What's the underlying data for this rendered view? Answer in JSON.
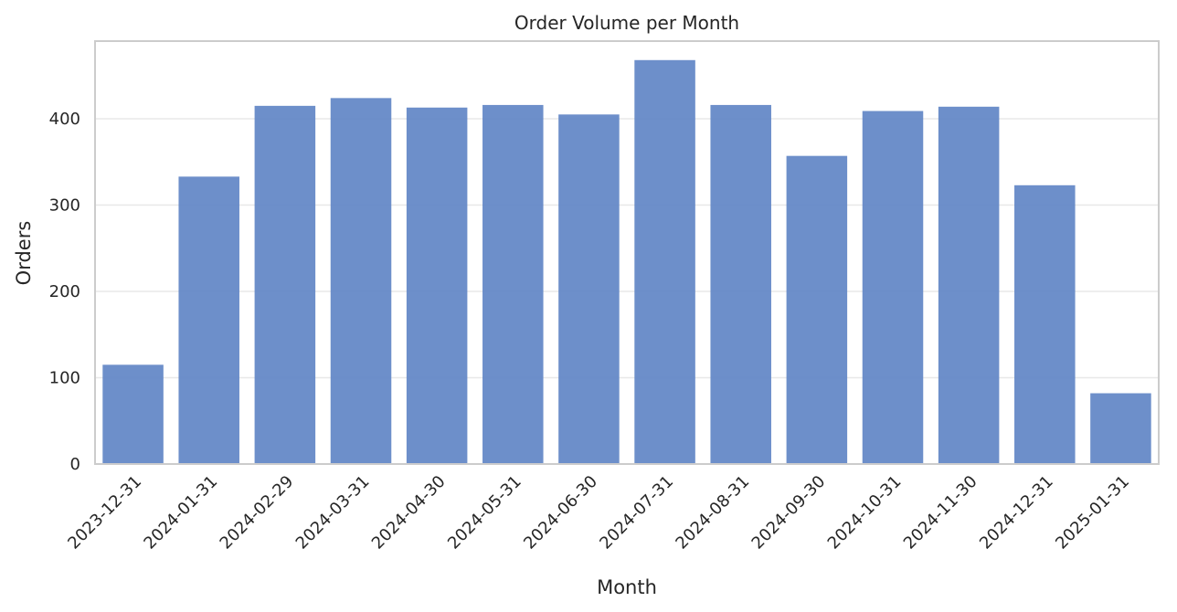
{
  "chart_data": {
    "type": "bar",
    "title": "Order Volume per Month",
    "xlabel": "Month",
    "ylabel": "Orders",
    "categories": [
      "2023-12-31",
      "2024-01-31",
      "2024-02-29",
      "2024-03-31",
      "2024-04-30",
      "2024-05-31",
      "2024-06-30",
      "2024-07-31",
      "2024-08-31",
      "2024-09-30",
      "2024-10-31",
      "2024-11-30",
      "2024-12-31",
      "2025-01-31"
    ],
    "values": [
      115,
      333,
      415,
      424,
      413,
      416,
      405,
      468,
      416,
      357,
      409,
      414,
      323,
      82
    ],
    "ylim": [
      0,
      490
    ],
    "yticks": [
      0,
      100,
      200,
      300,
      400
    ],
    "grid": true,
    "colors": {
      "bar": "#6185c5",
      "grid": "#e8e8e8",
      "frame": "#cccccc",
      "text": "#262626"
    }
  }
}
